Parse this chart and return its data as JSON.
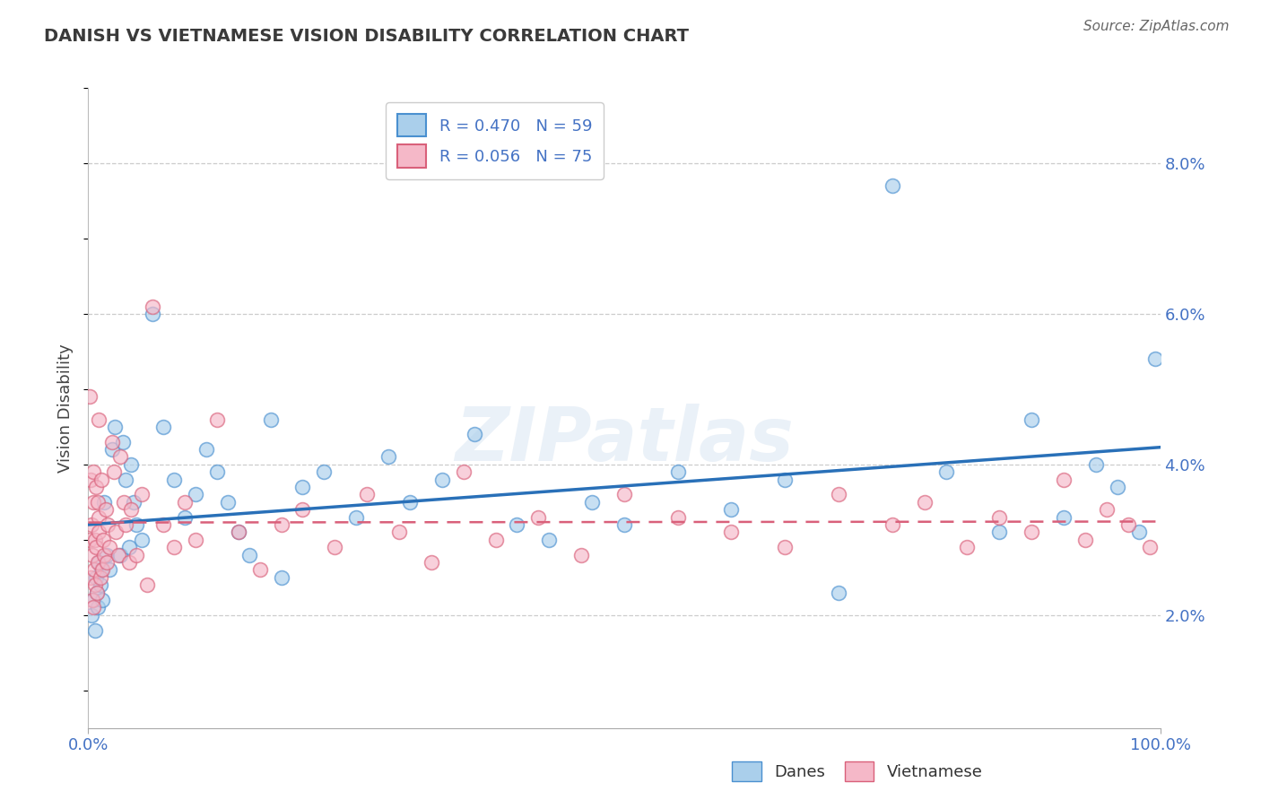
{
  "title": "DANISH VS VIETNAMESE VISION DISABILITY CORRELATION CHART",
  "source": "Source: ZipAtlas.com",
  "ylabel": "Vision Disability",
  "xlim_pct": [
    0.0,
    100.0
  ],
  "ylim_pct": [
    0.5,
    9.0
  ],
  "yticks_pct": [
    2.0,
    4.0,
    6.0,
    8.0
  ],
  "ytick_labels": [
    "2.0%",
    "4.0%",
    "6.0%",
    "8.0%"
  ],
  "xtick_labels": [
    "0.0%",
    "100.0%"
  ],
  "xtick_pos": [
    0.0,
    100.0
  ],
  "danes_scatter_facecolor": "#aacfeb",
  "danes_scatter_edgecolor": "#4a90d0",
  "danes_line_color": "#2970b8",
  "viet_scatter_facecolor": "#f5b8c8",
  "viet_scatter_edgecolor": "#d9607a",
  "viet_line_color": "#d9607a",
  "legend_r_danish": "R = 0.470",
  "legend_n_danish": "N = 59",
  "legend_r_vietnamese": "R = 0.056",
  "legend_n_vietnamese": "N = 75",
  "danes_label": "Danes",
  "vietnamese_label": "Vietnamese",
  "background_color": "#ffffff",
  "watermark": "ZIPatlas",
  "title_color": "#3a3a3a",
  "source_color": "#666666",
  "tick_color": "#4472C4",
  "ylabel_color": "#444444",
  "grid_color": "#cccccc",
  "danes_x": [
    0.3,
    0.5,
    0.6,
    0.7,
    0.8,
    0.9,
    1.0,
    1.1,
    1.2,
    1.3,
    1.5,
    1.7,
    2.0,
    2.2,
    2.5,
    3.0,
    3.2,
    3.5,
    3.8,
    4.0,
    4.2,
    4.5,
    5.0,
    6.0,
    7.0,
    8.0,
    9.0,
    10.0,
    11.0,
    12.0,
    13.0,
    14.0,
    15.0,
    17.0,
    18.0,
    20.0,
    22.0,
    25.0,
    28.0,
    30.0,
    33.0,
    36.0,
    40.0,
    43.0,
    47.0,
    50.0,
    55.0,
    60.0,
    65.0,
    70.0,
    75.0,
    80.0,
    85.0,
    88.0,
    91.0,
    94.0,
    96.0,
    98.0,
    99.5
  ],
  "danes_y": [
    2.0,
    2.2,
    1.8,
    2.5,
    2.3,
    2.1,
    2.7,
    2.4,
    2.6,
    2.2,
    3.5,
    2.8,
    2.6,
    4.2,
    4.5,
    2.8,
    4.3,
    3.8,
    2.9,
    4.0,
    3.5,
    3.2,
    3.0,
    6.0,
    4.5,
    3.8,
    3.3,
    3.6,
    4.2,
    3.9,
    3.5,
    3.1,
    2.8,
    4.6,
    2.5,
    3.7,
    3.9,
    3.3,
    4.1,
    3.5,
    3.8,
    4.4,
    3.2,
    3.0,
    3.5,
    3.2,
    3.9,
    3.4,
    3.8,
    2.3,
    7.7,
    3.9,
    3.1,
    4.6,
    3.3,
    4.0,
    3.7,
    3.1,
    5.4
  ],
  "vietnamese_x": [
    0.1,
    0.15,
    0.2,
    0.25,
    0.3,
    0.35,
    0.4,
    0.45,
    0.5,
    0.5,
    0.55,
    0.6,
    0.65,
    0.7,
    0.75,
    0.8,
    0.85,
    0.9,
    0.95,
    1.0,
    1.0,
    1.1,
    1.2,
    1.3,
    1.4,
    1.5,
    1.6,
    1.7,
    1.8,
    2.0,
    2.2,
    2.4,
    2.6,
    2.8,
    3.0,
    3.3,
    3.5,
    3.8,
    4.0,
    4.5,
    5.0,
    5.5,
    6.0,
    7.0,
    8.0,
    9.0,
    10.0,
    12.0,
    14.0,
    16.0,
    18.0,
    20.0,
    23.0,
    26.0,
    29.0,
    32.0,
    35.0,
    38.0,
    42.0,
    46.0,
    50.0,
    55.0,
    60.0,
    65.0,
    70.0,
    75.0,
    78.0,
    82.0,
    85.0,
    88.0,
    91.0,
    93.0,
    95.0,
    97.0,
    99.0
  ],
  "vietnamese_y": [
    4.9,
    3.0,
    3.8,
    2.5,
    3.2,
    2.2,
    2.8,
    3.5,
    2.1,
    3.9,
    2.6,
    3.0,
    2.4,
    3.7,
    2.9,
    2.3,
    3.5,
    2.7,
    4.6,
    3.1,
    3.3,
    2.5,
    3.8,
    2.6,
    3.0,
    2.8,
    3.4,
    2.7,
    3.2,
    2.9,
    4.3,
    3.9,
    3.1,
    2.8,
    4.1,
    3.5,
    3.2,
    2.7,
    3.4,
    2.8,
    3.6,
    2.4,
    6.1,
    3.2,
    2.9,
    3.5,
    3.0,
    4.6,
    3.1,
    2.6,
    3.2,
    3.4,
    2.9,
    3.6,
    3.1,
    2.7,
    3.9,
    3.0,
    3.3,
    2.8,
    3.6,
    3.3,
    3.1,
    2.9,
    3.6,
    3.2,
    3.5,
    2.9,
    3.3,
    3.1,
    3.8,
    3.0,
    3.4,
    3.2,
    2.9
  ]
}
